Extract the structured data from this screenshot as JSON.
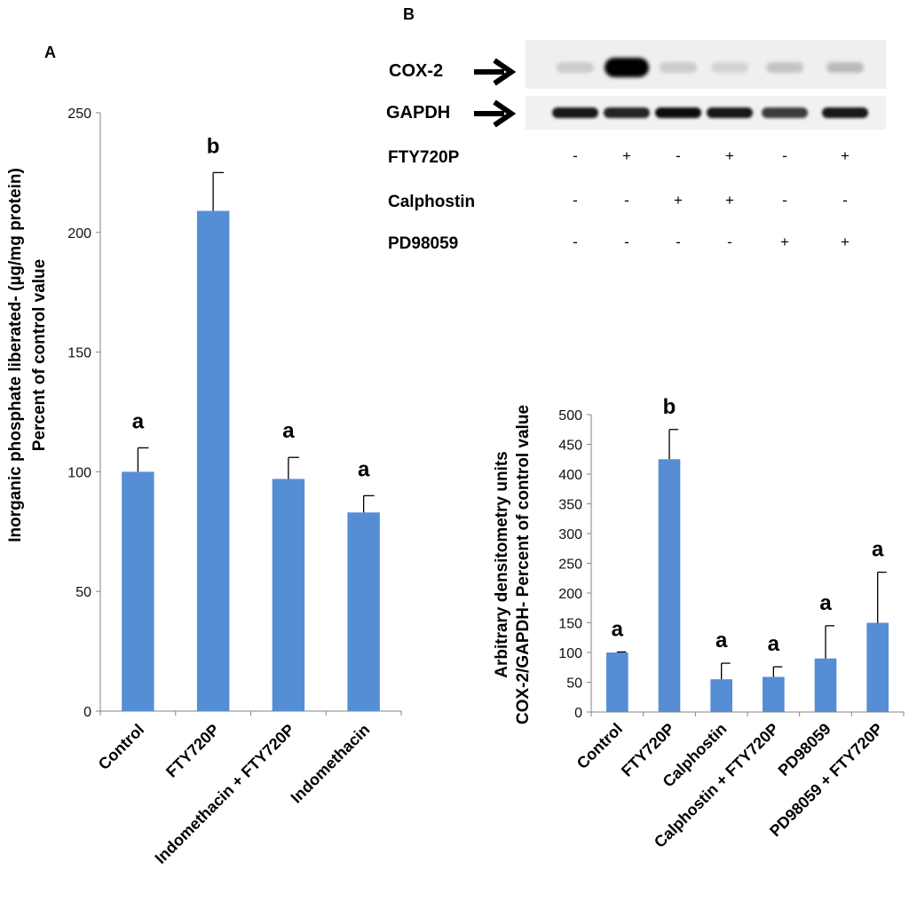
{
  "chart_data": [
    {
      "panel": "A",
      "type": "bar",
      "categories": [
        "Control",
        "FTY720P",
        "Indomethacin + FTY720P",
        "Indomethacin"
      ],
      "values": [
        100,
        209,
        97,
        83
      ],
      "errors": [
        10,
        16,
        9,
        7
      ],
      "letters": [
        "a",
        "b",
        "a",
        "a"
      ],
      "ylabel_lines": [
        "Inorganic phosphate liberated- (µg/mg protein)",
        "Percent of control value"
      ],
      "ylim": [
        0,
        250
      ],
      "yticks": [
        0,
        50,
        100,
        150,
        200,
        250
      ],
      "bar_color": "#558ED5",
      "grid": false
    },
    {
      "panel": "B",
      "type": "bar",
      "categories": [
        "Control",
        "FTY720P",
        "Calphostin",
        "Calphostin + FTY720P",
        "PD98059",
        "PD98059 + FTY720P"
      ],
      "values": [
        100,
        425,
        55,
        59,
        90,
        150
      ],
      "errors": [
        1,
        50,
        27,
        17,
        55,
        85
      ],
      "letters": [
        "a",
        "b",
        "a",
        "a",
        "a",
        "a"
      ],
      "ylabel_lines": [
        "Arbitrary densitometry units",
        "COX-2/GAPDH-  Percent of control value"
      ],
      "ylim": [
        0,
        500
      ],
      "yticks": [
        0,
        50,
        100,
        150,
        200,
        250,
        300,
        350,
        400,
        450,
        500
      ],
      "bar_color": "#558ED5",
      "grid": false
    }
  ],
  "western_blot": {
    "panel": "B",
    "bands": [
      "COX-2",
      "GAPDH"
    ],
    "cox2_intensity": [
      0.15,
      1.0,
      0.15,
      0.12,
      0.18,
      0.22
    ],
    "gapdh_intensity": [
      0.9,
      0.85,
      0.95,
      0.9,
      0.75,
      0.9
    ],
    "treatments": [
      {
        "label": "FTY720P",
        "signs": [
          "-",
          "+",
          "-",
          "+",
          "-",
          "+"
        ]
      },
      {
        "label": "Calphostin",
        "signs": [
          "-",
          "-",
          "+",
          "+",
          "-",
          "-"
        ]
      },
      {
        "label": "PD98059",
        "signs": [
          "-",
          "-",
          "-",
          "-",
          "+",
          "+"
        ]
      }
    ]
  }
}
